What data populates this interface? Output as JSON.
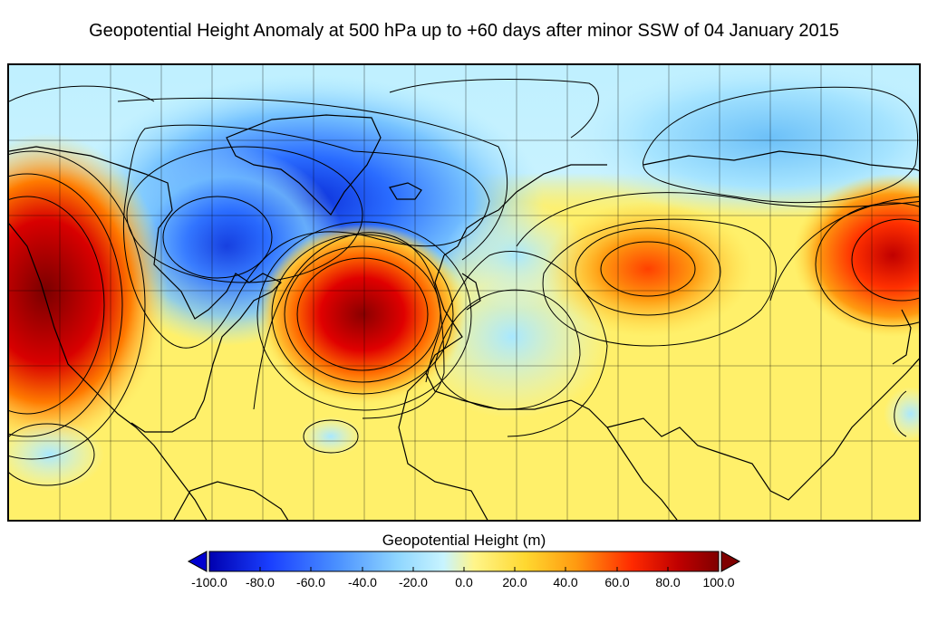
{
  "title": "Geopotential Height Anomaly at 500 hPa up to +60 days after minor SSW of 04 January 2015",
  "colorbar": {
    "label": "Geopotential Height (m)",
    "ticks": [
      "-100.0",
      "-80.0",
      "-60.0",
      "-40.0",
      "-20.0",
      "0.0",
      "20.0",
      "40.0",
      "60.0",
      "80.0",
      "100.0"
    ],
    "min": -100,
    "max": 100,
    "colors": [
      "#0000b0",
      "#1030ff",
      "#4a90ff",
      "#8fd6ff",
      "#c8f4ff",
      "#fff58a",
      "#ffe14a",
      "#ffa020",
      "#ff3a00",
      "#c80000",
      "#800000"
    ]
  },
  "map": {
    "background_color": "#fff06a",
    "coastline_color": "#000000"
  }
}
